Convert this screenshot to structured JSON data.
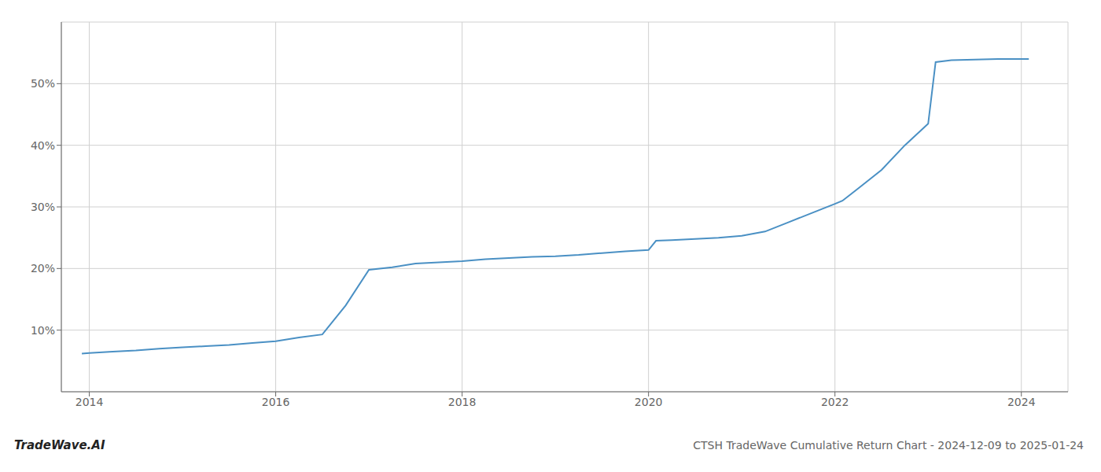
{
  "chart_data": {
    "type": "line",
    "title": "CTSH TradeWave Cumulative Return Chart - 2024-12-09 to 2025-01-24",
    "annotations": [
      {
        "text": "TradeWave.AI"
      }
    ],
    "x": [
      2013.92,
      2014.0,
      2014.25,
      2014.5,
      2014.75,
      2015.0,
      2015.25,
      2015.5,
      2015.75,
      2016.0,
      2016.25,
      2016.5,
      2016.75,
      2017.0,
      2017.25,
      2017.5,
      2017.75,
      2018.0,
      2018.25,
      2018.5,
      2018.75,
      2019.0,
      2019.25,
      2019.5,
      2019.75,
      2020.0,
      2020.08,
      2020.25,
      2020.5,
      2020.75,
      2021.0,
      2021.25,
      2021.5,
      2021.75,
      2022.0,
      2022.08,
      2022.25,
      2022.5,
      2022.75,
      2023.0,
      2023.08,
      2023.25,
      2023.5,
      2023.75,
      2024.0,
      2024.08
    ],
    "values": [
      6.2,
      6.3,
      6.5,
      6.7,
      7.0,
      7.2,
      7.4,
      7.6,
      7.9,
      8.2,
      8.8,
      9.3,
      14.0,
      19.8,
      20.2,
      20.8,
      21.0,
      21.2,
      21.5,
      21.7,
      21.9,
      22.0,
      22.2,
      22.5,
      22.8,
      23.0,
      24.5,
      24.6,
      24.8,
      25.0,
      25.3,
      26.0,
      27.5,
      29.0,
      30.5,
      31.0,
      33.0,
      36.0,
      40.0,
      43.5,
      53.5,
      53.8,
      53.9,
      54.0,
      54.0,
      54.0
    ],
    "color": "#4a90c4",
    "xlim": [
      2013.7,
      2024.5
    ],
    "ylim": [
      0,
      60
    ],
    "xticks": [
      2014,
      2016,
      2018,
      2020,
      2022,
      2024
    ],
    "yticks": [
      {
        "value": 10,
        "label": "10%"
      },
      {
        "value": 20,
        "label": "20%"
      },
      {
        "value": 30,
        "label": "30%"
      },
      {
        "value": 40,
        "label": "40%"
      },
      {
        "value": 50,
        "label": "50%"
      }
    ],
    "grid": true
  }
}
